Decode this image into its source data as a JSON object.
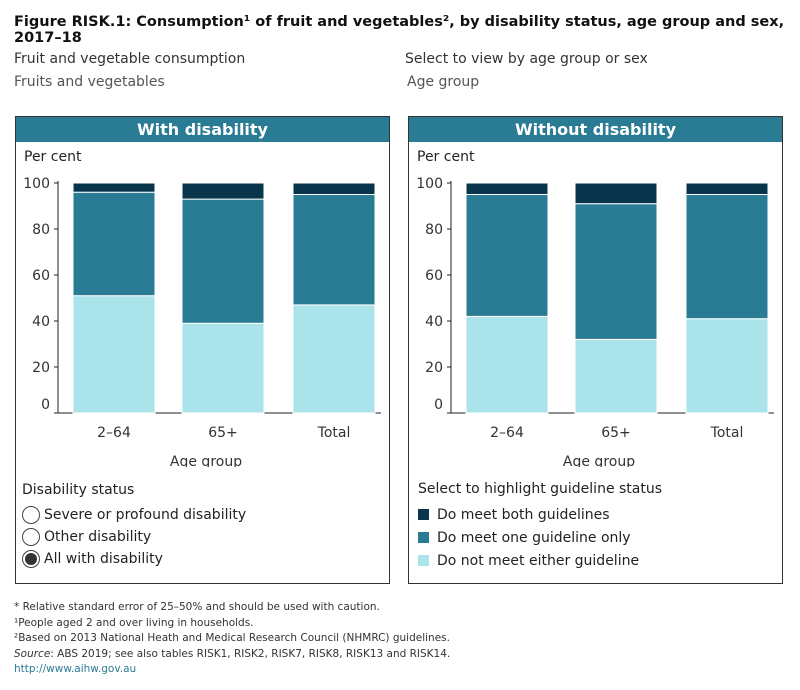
{
  "title": "Figure RISK.1: Consumption¹ of fruit and vegetables², by disability status, age group and sex, 2017–18",
  "filters": {
    "consumption_label": "Fruit and vegetable consumption",
    "consumption_value": "Fruits and vegetables",
    "view_label": "Select to view by age group or sex",
    "view_value": "Age group"
  },
  "colors": {
    "both": "#08354b",
    "one": "#2a7b94",
    "neither": "#abe3eb",
    "header": "#2a7b94"
  },
  "chart_data": [
    {
      "type": "bar",
      "stacked": true,
      "title": "With disability",
      "ylabel": "Per cent",
      "xlabel": "Age group",
      "ylim": [
        0,
        100
      ],
      "yticks": [
        0,
        20,
        40,
        60,
        80,
        100
      ],
      "categories": [
        "2–64",
        "65+",
        "Total"
      ],
      "series": [
        {
          "name": "Do not meet either guideline",
          "values": [
            51,
            39,
            47
          ]
        },
        {
          "name": "Do meet one guideline only",
          "values": [
            45,
            54,
            48
          ]
        },
        {
          "name": "Do meet both guidelines",
          "values": [
            4,
            7,
            5
          ]
        }
      ]
    },
    {
      "type": "bar",
      "stacked": true,
      "title": "Without disability",
      "ylabel": "Per cent",
      "xlabel": "Age group",
      "ylim": [
        0,
        100
      ],
      "yticks": [
        0,
        20,
        40,
        60,
        80,
        100
      ],
      "categories": [
        "2–64",
        "65+",
        "Total"
      ],
      "series": [
        {
          "name": "Do not meet either guideline",
          "values": [
            42,
            32,
            41
          ]
        },
        {
          "name": "Do meet one guideline only",
          "values": [
            53,
            59,
            54
          ]
        },
        {
          "name": "Do meet both guidelines",
          "values": [
            5,
            9,
            5
          ]
        }
      ]
    }
  ],
  "disability_legend": {
    "title": "Disability status",
    "options": [
      {
        "label": "Severe or profound disability",
        "selected": false
      },
      {
        "label": "Other disability",
        "selected": false
      },
      {
        "label": "All with disability",
        "selected": true
      }
    ]
  },
  "guideline_legend": {
    "title": "Select to highlight guideline status",
    "items": [
      "Do meet both guidelines",
      "Do meet one guideline only",
      "Do not meet either guideline"
    ]
  },
  "notes": {
    "n1": "* Relative standard error of 25–50% and should be used with caution.",
    "n2": "¹People aged 2 and over living in households.",
    "n3": "²Based on 2013 National Heath and Medical Research Council (NHMRC) guidelines.",
    "source_label": "Source",
    "source_text": ": ABS 2019; see also tables RISK1, RISK2, RISK7, RISK8, RISK13 and RISK14.",
    "link": "http://www.aihw.gov.au"
  }
}
